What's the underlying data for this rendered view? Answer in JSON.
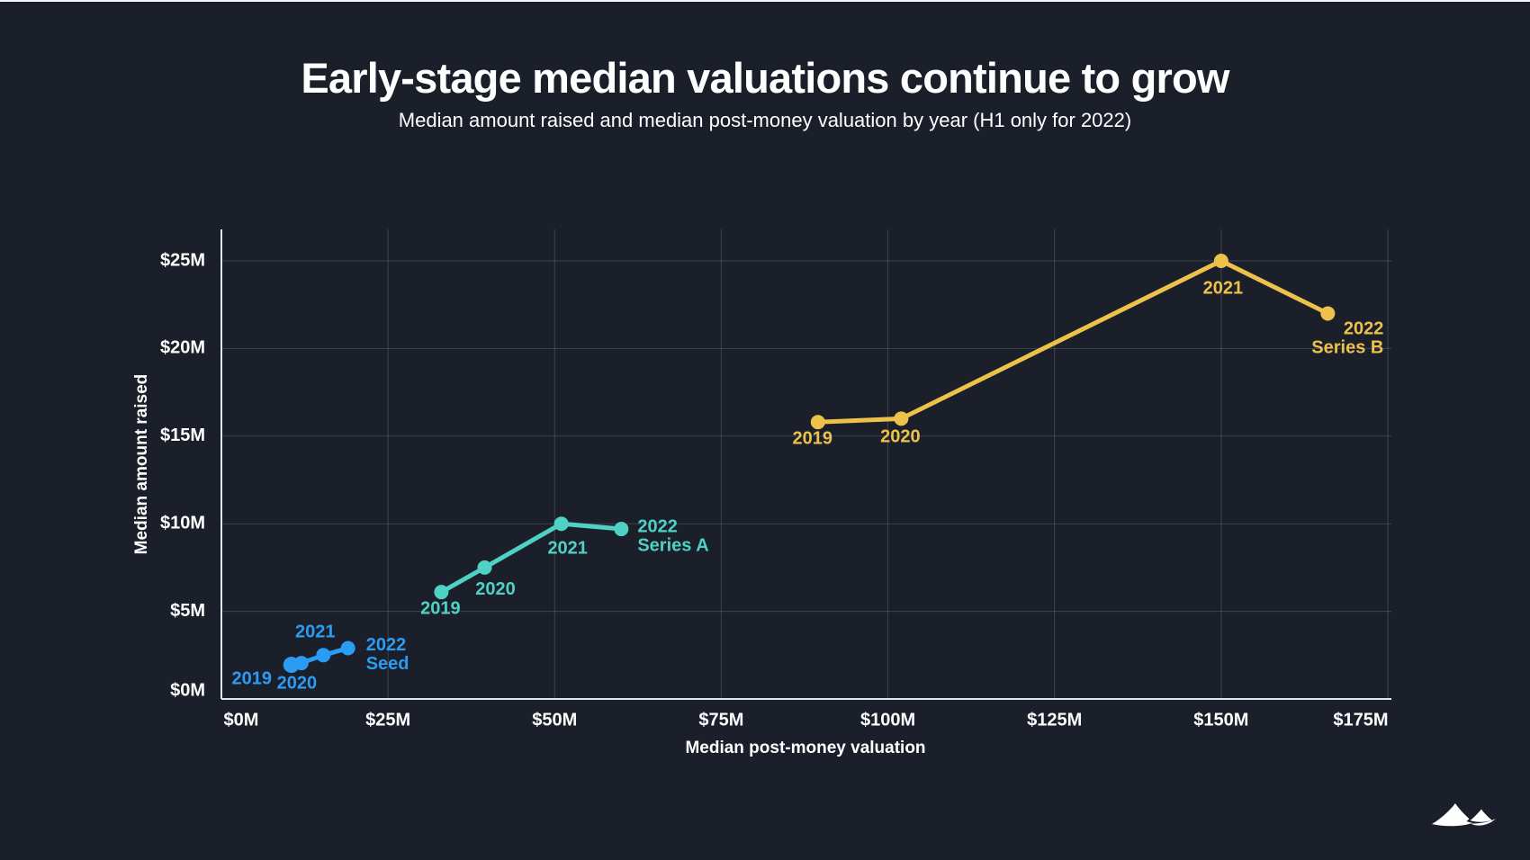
{
  "page": {
    "background": "#1a1f2a",
    "top_border_color": "#f6f7f8"
  },
  "header": {
    "title": "Early-stage median valuations continue to grow",
    "subtitle": "Median amount raised and median post-money valuation by year (H1 only for 2022)"
  },
  "chart_data": {
    "type": "line",
    "title": "Early-stage median valuations continue to grow",
    "subtitle": "Median amount raised and median post-money valuation by year (H1 only for 2022)",
    "xlabel": "Median post-money valuation",
    "ylabel": "Median amount raised",
    "xlim": [
      0,
      175.5
    ],
    "ylim": [
      0,
      26.8
    ],
    "grid": true,
    "legend_position": "none (inline point labels)",
    "x_ticks": [
      {
        "value": 0,
        "label": "$0M",
        "label_dx": 22
      },
      {
        "value": 25,
        "label": "$25M"
      },
      {
        "value": 50,
        "label": "$50M"
      },
      {
        "value": 75,
        "label": "$75M"
      },
      {
        "value": 100,
        "label": "$100M"
      },
      {
        "value": 125,
        "label": "$125M"
      },
      {
        "value": 150,
        "label": "$150M"
      },
      {
        "value": 175,
        "label": "$175M",
        "label_dx": -30
      }
    ],
    "y_ticks": [
      {
        "value": 0,
        "label": "$0M",
        "label_dy": -9
      },
      {
        "value": 5,
        "label": "$5M"
      },
      {
        "value": 10,
        "label": "$10M"
      },
      {
        "value": 15,
        "label": "$15M"
      },
      {
        "value": 20,
        "label": "$20M"
      },
      {
        "value": 25,
        "label": "$25M"
      }
    ],
    "series": [
      {
        "name": "Seed",
        "color": "#2b9cf4",
        "points": [
          {
            "year": "2019",
            "x": 10.5,
            "y": 1.95,
            "r": 9,
            "label": {
              "lines": [
                "2019"
              ],
              "anchor": "middle",
              "dx": -44,
              "dy": 16
            }
          },
          {
            "year": "2020",
            "x": 12,
            "y": 2.05,
            "r": 8,
            "label": {
              "lines": [
                "2020"
              ],
              "anchor": "middle",
              "dx": -5,
              "dy": 23
            }
          },
          {
            "year": "2021",
            "x": 15.3,
            "y": 2.5,
            "r": 8,
            "label": {
              "lines": [
                "2021"
              ],
              "anchor": "middle",
              "dx": -9,
              "dy": -25
            }
          },
          {
            "year": "2022",
            "x": 19,
            "y": 2.9,
            "r": 8,
            "label": {
              "lines": [
                "2022",
                "Seed"
              ],
              "anchor": "start",
              "dx": 20,
              "dy": -3
            }
          }
        ]
      },
      {
        "name": "Series A",
        "color": "#4fd1c5",
        "points": [
          {
            "year": "2019",
            "x": 33,
            "y": 6.1,
            "r": 8,
            "label": {
              "lines": [
                "2019"
              ],
              "anchor": "middle",
              "dx": -1,
              "dy": 19
            }
          },
          {
            "year": "2020",
            "x": 39.5,
            "y": 7.5,
            "r": 8,
            "label": {
              "lines": [
                "2020"
              ],
              "anchor": "middle",
              "dx": 12,
              "dy": 25
            }
          },
          {
            "year": "2021",
            "x": 51,
            "y": 10,
            "r": 8,
            "label": {
              "lines": [
                "2021"
              ],
              "anchor": "middle",
              "dx": 7,
              "dy": 28
            }
          },
          {
            "year": "2022",
            "x": 60,
            "y": 9.7,
            "r": 8,
            "label": {
              "lines": [
                "2022",
                "Series A"
              ],
              "anchor": "start",
              "dx": 18,
              "dy": -2
            }
          }
        ]
      },
      {
        "name": "Series B",
        "color": "#ecc24a",
        "points": [
          {
            "year": "2019",
            "x": 89.5,
            "y": 15.8,
            "r": 8,
            "label": {
              "lines": [
                "2019"
              ],
              "anchor": "middle",
              "dx": -6,
              "dy": 19
            }
          },
          {
            "year": "2020",
            "x": 102,
            "y": 16,
            "r": 8,
            "label": {
              "lines": [
                "2020"
              ],
              "anchor": "middle",
              "dx": -1,
              "dy": 21
            }
          },
          {
            "year": "2021",
            "x": 150,
            "y": 25,
            "r": 8,
            "label": {
              "lines": [
                "2021"
              ],
              "anchor": "middle",
              "dx": 2,
              "dy": 31
            }
          },
          {
            "year": "2022",
            "x": 166,
            "y": 22,
            "r": 8,
            "label": {
              "lines": [
                "2022",
                "Series B"
              ],
              "anchor": "end",
              "dx": 62,
              "dy": 18
            }
          }
        ]
      }
    ]
  },
  "footer": {
    "logo_name": "mountains-logo"
  }
}
